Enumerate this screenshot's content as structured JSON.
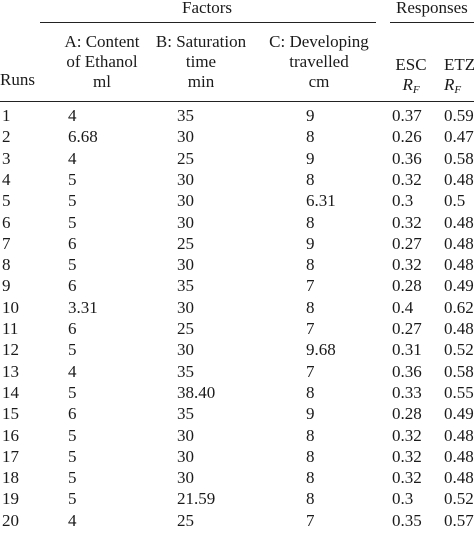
{
  "header": {
    "factors_label": "Factors",
    "responses_label": "Responses",
    "runs_label": "Runs",
    "col_a": [
      "A: Content",
      "of Ethanol",
      "ml"
    ],
    "col_b": [
      "B: Saturation",
      "time",
      "min"
    ],
    "col_c": [
      "C: Developing",
      "travelled",
      "cm"
    ],
    "col_esc": "ESC",
    "col_etz": "ETZ",
    "rf_symbol": "R",
    "rf_subscript": "F"
  },
  "rows": [
    {
      "run": "1",
      "a": "4",
      "b": "35",
      "c": "9",
      "esc": "0.37",
      "etz": "0.59"
    },
    {
      "run": "2",
      "a": "6.68",
      "b": "30",
      "c": "8",
      "esc": "0.26",
      "etz": "0.47"
    },
    {
      "run": "3",
      "a": "4",
      "b": "25",
      "c": "9",
      "esc": "0.36",
      "etz": "0.58"
    },
    {
      "run": "4",
      "a": "5",
      "b": "30",
      "c": "8",
      "esc": "0.32",
      "etz": "0.48"
    },
    {
      "run": "5",
      "a": "5",
      "b": "30",
      "c": "6.31",
      "esc": "0.3",
      "etz": "0.5"
    },
    {
      "run": "6",
      "a": "5",
      "b": "30",
      "c": "8",
      "esc": "0.32",
      "etz": "0.48"
    },
    {
      "run": "7",
      "a": "6",
      "b": "25",
      "c": "9",
      "esc": "0.27",
      "etz": "0.48"
    },
    {
      "run": "8",
      "a": "5",
      "b": "30",
      "c": "8",
      "esc": "0.32",
      "etz": "0.48"
    },
    {
      "run": "9",
      "a": "6",
      "b": "35",
      "c": "7",
      "esc": "0.28",
      "etz": "0.49"
    },
    {
      "run": "10",
      "a": "3.31",
      "b": "30",
      "c": "8",
      "esc": "0.4",
      "etz": "0.62"
    },
    {
      "run": "11",
      "a": "6",
      "b": "25",
      "c": "7",
      "esc": "0.27",
      "etz": "0.48"
    },
    {
      "run": "12",
      "a": "5",
      "b": "30",
      "c": "9.68",
      "esc": "0.31",
      "etz": "0.52"
    },
    {
      "run": "13",
      "a": "4",
      "b": "35",
      "c": "7",
      "esc": "0.36",
      "etz": "0.58"
    },
    {
      "run": "14",
      "a": "5",
      "b": "38.40",
      "c": "8",
      "esc": "0.33",
      "etz": "0.55"
    },
    {
      "run": "15",
      "a": "6",
      "b": "35",
      "c": "9",
      "esc": "0.28",
      "etz": "0.49"
    },
    {
      "run": "16",
      "a": "5",
      "b": "30",
      "c": "8",
      "esc": "0.32",
      "etz": "0.48"
    },
    {
      "run": "17",
      "a": "5",
      "b": "30",
      "c": "8",
      "esc": "0.32",
      "etz": "0.48"
    },
    {
      "run": "18",
      "a": "5",
      "b": "30",
      "c": "8",
      "esc": "0.32",
      "etz": "0.48"
    },
    {
      "run": "19",
      "a": "5",
      "b": "21.59",
      "c": "8",
      "esc": "0.3",
      "etz": "0.52"
    },
    {
      "run": "20",
      "a": "4",
      "b": "25",
      "c": "7",
      "esc": "0.35",
      "etz": "0.57"
    }
  ]
}
